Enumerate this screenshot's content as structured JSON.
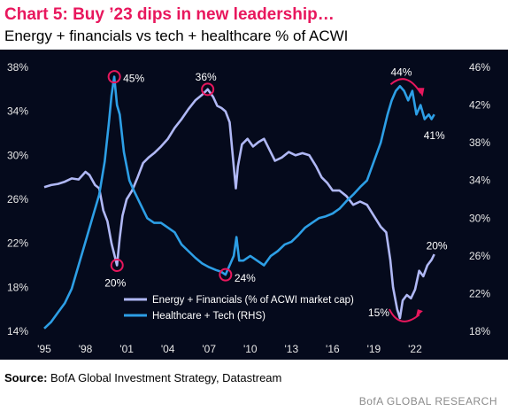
{
  "header": {
    "title": "Chart 5: Buy ’23 dips in new leadership…",
    "subtitle": "Energy + financials vs tech + healthcare % of ACWI"
  },
  "chart_data": {
    "type": "line",
    "x_range": [
      1995,
      2024
    ],
    "x_ticks": [
      {
        "x": 1995,
        "label": "'95"
      },
      {
        "x": 1998,
        "label": "'98"
      },
      {
        "x": 2001,
        "label": "'01"
      },
      {
        "x": 2004,
        "label": "'04"
      },
      {
        "x": 2007,
        "label": "'07"
      },
      {
        "x": 2010,
        "label": "'10"
      },
      {
        "x": 2013,
        "label": "'13"
      },
      {
        "x": 2016,
        "label": "'16"
      },
      {
        "x": 2019,
        "label": "'19"
      },
      {
        "x": 2022,
        "label": "'22"
      }
    ],
    "y_left": {
      "ylim": [
        14,
        38
      ],
      "ticks": [
        14,
        18,
        22,
        26,
        30,
        34,
        38
      ],
      "tick_labels": [
        "14%",
        "18%",
        "22%",
        "26%",
        "30%",
        "34%",
        "38%"
      ]
    },
    "y_right": {
      "ylim": [
        18,
        46
      ],
      "ticks": [
        18,
        22,
        26,
        30,
        34,
        38,
        42,
        46
      ],
      "tick_labels": [
        "18%",
        "22%",
        "26%",
        "30%",
        "34%",
        "38%",
        "42%",
        "46%"
      ]
    },
    "grid": false,
    "legend_position": "bottom-center",
    "series": [
      {
        "name": "Energy + Financials (% of ACWI market cap)",
        "axis": "left",
        "color": "#b0b8f5",
        "points": [
          [
            1995.0,
            27.1
          ],
          [
            1995.5,
            27.3
          ],
          [
            1996.0,
            27.4
          ],
          [
            1996.5,
            27.6
          ],
          [
            1997.0,
            27.9
          ],
          [
            1997.5,
            27.8
          ],
          [
            1998.0,
            28.5
          ],
          [
            1998.3,
            28.2
          ],
          [
            1998.7,
            27.3
          ],
          [
            1999.0,
            27.0
          ],
          [
            1999.3,
            25.0
          ],
          [
            1999.6,
            24.0
          ],
          [
            1999.9,
            22.0
          ],
          [
            2000.1,
            21.0
          ],
          [
            2000.3,
            20.0
          ],
          [
            2000.5,
            22.5
          ],
          [
            2000.7,
            24.5
          ],
          [
            2001.0,
            26.0
          ],
          [
            2001.4,
            26.8
          ],
          [
            2001.8,
            28.0
          ],
          [
            2002.2,
            29.3
          ],
          [
            2002.6,
            29.8
          ],
          [
            2003.0,
            30.2
          ],
          [
            2003.5,
            30.8
          ],
          [
            2004.0,
            31.5
          ],
          [
            2004.5,
            32.5
          ],
          [
            2005.0,
            33.3
          ],
          [
            2005.5,
            34.2
          ],
          [
            2006.0,
            35.0
          ],
          [
            2006.5,
            35.5
          ],
          [
            2006.9,
            36.0
          ],
          [
            2007.3,
            35.3
          ],
          [
            2007.6,
            34.5
          ],
          [
            2007.9,
            34.3
          ],
          [
            2008.2,
            34.0
          ],
          [
            2008.5,
            33.0
          ],
          [
            2008.8,
            29.0
          ],
          [
            2008.95,
            27.0
          ],
          [
            2009.1,
            29.0
          ],
          [
            2009.4,
            31.0
          ],
          [
            2009.8,
            31.5
          ],
          [
            2010.2,
            30.8
          ],
          [
            2010.6,
            31.2
          ],
          [
            2011.0,
            31.5
          ],
          [
            2011.4,
            30.5
          ],
          [
            2011.8,
            29.5
          ],
          [
            2012.3,
            29.8
          ],
          [
            2012.8,
            30.3
          ],
          [
            2013.3,
            30.0
          ],
          [
            2013.8,
            30.2
          ],
          [
            2014.3,
            30.0
          ],
          [
            2014.8,
            29.0
          ],
          [
            2015.2,
            28.0
          ],
          [
            2015.6,
            27.5
          ],
          [
            2016.0,
            26.8
          ],
          [
            2016.5,
            26.8
          ],
          [
            2017.0,
            26.3
          ],
          [
            2017.5,
            25.5
          ],
          [
            2018.0,
            25.8
          ],
          [
            2018.5,
            25.5
          ],
          [
            2019.0,
            24.5
          ],
          [
            2019.5,
            23.5
          ],
          [
            2019.9,
            23.0
          ],
          [
            2020.2,
            20.5
          ],
          [
            2020.4,
            18.0
          ],
          [
            2020.7,
            16.0
          ],
          [
            2020.9,
            15.2
          ],
          [
            2021.1,
            16.8
          ],
          [
            2021.4,
            17.3
          ],
          [
            2021.7,
            17.0
          ],
          [
            2022.0,
            17.8
          ],
          [
            2022.3,
            19.5
          ],
          [
            2022.6,
            19.0
          ],
          [
            2022.9,
            20.0
          ],
          [
            2023.2,
            20.5
          ],
          [
            2023.4,
            21.0
          ]
        ]
      },
      {
        "name": "Healthcare + Tech (RHS)",
        "axis": "right",
        "color": "#2d9fe6",
        "points": [
          [
            1995.0,
            18.3
          ],
          [
            1995.5,
            19.0
          ],
          [
            1996.0,
            20.0
          ],
          [
            1996.5,
            21.0
          ],
          [
            1997.0,
            22.5
          ],
          [
            1997.5,
            25.0
          ],
          [
            1998.0,
            27.5
          ],
          [
            1998.5,
            30.0
          ],
          [
            1999.0,
            32.5
          ],
          [
            1999.4,
            36.0
          ],
          [
            1999.7,
            40.0
          ],
          [
            1999.9,
            43.0
          ],
          [
            2000.1,
            45.0
          ],
          [
            2000.3,
            42.0
          ],
          [
            2000.5,
            41.0
          ],
          [
            2000.8,
            37.0
          ],
          [
            2001.2,
            34.0
          ],
          [
            2001.5,
            33.0
          ],
          [
            2002.0,
            31.5
          ],
          [
            2002.5,
            30.0
          ],
          [
            2003.0,
            29.5
          ],
          [
            2003.5,
            29.5
          ],
          [
            2004.0,
            29.0
          ],
          [
            2004.5,
            28.5
          ],
          [
            2005.0,
            27.2
          ],
          [
            2005.5,
            26.5
          ],
          [
            2006.0,
            25.8
          ],
          [
            2006.5,
            25.2
          ],
          [
            2007.0,
            24.8
          ],
          [
            2007.5,
            24.5
          ],
          [
            2007.9,
            24.3
          ],
          [
            2008.2,
            24.0
          ],
          [
            2008.5,
            25.0
          ],
          [
            2008.8,
            26.0
          ],
          [
            2009.0,
            28.0
          ],
          [
            2009.2,
            25.5
          ],
          [
            2009.5,
            25.5
          ],
          [
            2010.0,
            26.0
          ],
          [
            2010.5,
            25.5
          ],
          [
            2011.0,
            25.0
          ],
          [
            2011.5,
            26.0
          ],
          [
            2012.0,
            26.5
          ],
          [
            2012.5,
            27.2
          ],
          [
            2013.0,
            27.5
          ],
          [
            2013.5,
            28.2
          ],
          [
            2014.0,
            29.0
          ],
          [
            2014.5,
            29.5
          ],
          [
            2015.0,
            30.0
          ],
          [
            2015.5,
            30.2
          ],
          [
            2016.0,
            30.5
          ],
          [
            2016.5,
            31.0
          ],
          [
            2017.0,
            31.8
          ],
          [
            2017.5,
            32.5
          ],
          [
            2018.0,
            33.3
          ],
          [
            2018.5,
            34.0
          ],
          [
            2019.0,
            36.0
          ],
          [
            2019.5,
            38.0
          ],
          [
            2020.0,
            41.0
          ],
          [
            2020.3,
            42.5
          ],
          [
            2020.6,
            43.5
          ],
          [
            2020.9,
            44.0
          ],
          [
            2021.2,
            43.5
          ],
          [
            2021.5,
            42.5
          ],
          [
            2021.8,
            43.5
          ],
          [
            2022.1,
            41.0
          ],
          [
            2022.4,
            42.0
          ],
          [
            2022.7,
            40.5
          ],
          [
            2023.0,
            41.0
          ],
          [
            2023.2,
            40.5
          ],
          [
            2023.4,
            41.0
          ]
        ]
      }
    ],
    "annotations": [
      {
        "label": "45%",
        "x": 2000.1,
        "y": 45.0,
        "axis": "right",
        "marker": "circle"
      },
      {
        "label": "20%",
        "x": 2000.3,
        "y": 20.0,
        "axis": "left",
        "marker": "circle"
      },
      {
        "label": "36%",
        "x": 2006.9,
        "y": 36.0,
        "axis": "left",
        "marker": "circle"
      },
      {
        "label": "24%",
        "x": 2008.2,
        "y": 24.0,
        "axis": "right",
        "marker": "circle"
      },
      {
        "label": "44%",
        "x": 2021.0,
        "y": 44.0,
        "axis": "right",
        "marker": "arrow-down"
      },
      {
        "label": "41%",
        "x": 2023.4,
        "y": 41.0,
        "axis": "right",
        "marker": "none"
      },
      {
        "label": "15%",
        "x": 2020.9,
        "y": 15.2,
        "axis": "left",
        "marker": "arrow-up"
      },
      {
        "label": "20%",
        "x": 2023.2,
        "y": 20.5,
        "axis": "left",
        "marker": "none"
      }
    ],
    "accent_color": "#e8175d"
  },
  "footer": {
    "source_label": "Source:",
    "source_text": "BofA Global Investment Strategy, Datastream",
    "brand": "BofA GLOBAL RESEARCH"
  }
}
